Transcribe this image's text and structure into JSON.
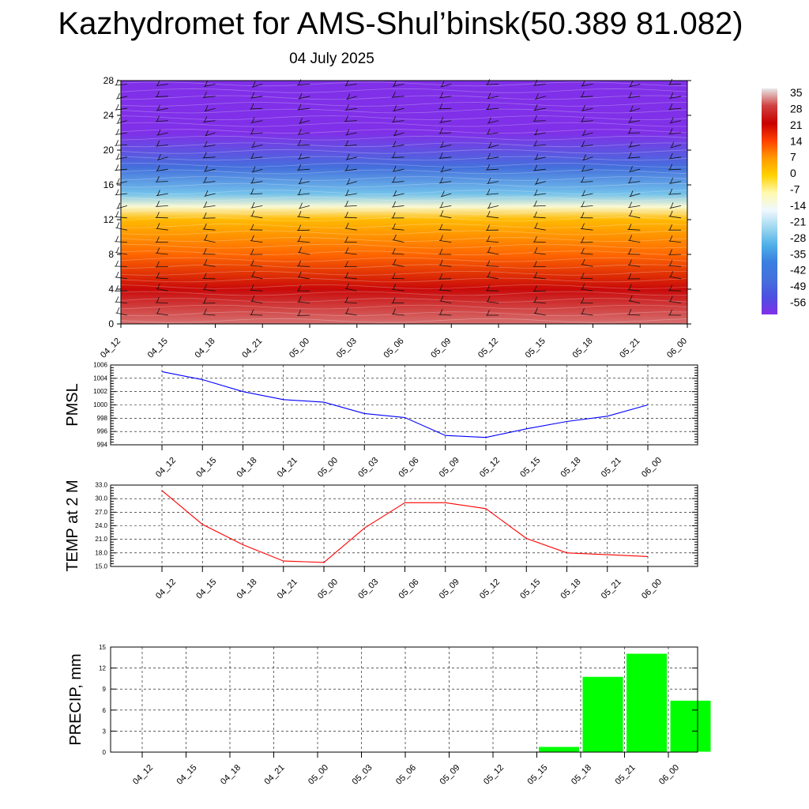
{
  "title": "Kazhydromet for AMS-Shul’binsk(50.389 81.082)",
  "date": "04 July 2025",
  "time_labels": [
    "04_12",
    "04_15",
    "04_18",
    "04_21",
    "05_00",
    "05_03",
    "05_06",
    "05_09",
    "05_12",
    "05_15",
    "05_18",
    "05_21",
    "06_00"
  ],
  "chart_data": [
    {
      "type": "heatmap",
      "title": "",
      "ylabel": "",
      "y_ticks": [
        0,
        4,
        8,
        12,
        16,
        20,
        24,
        28
      ],
      "ylim": [
        0,
        28
      ],
      "colorbar_labels": [
        "35",
        "28",
        "21",
        "14",
        "7",
        "0",
        "-7",
        "-14",
        "-21",
        "-28",
        "-35",
        "-42",
        "-49",
        "-56"
      ],
      "colorbar_colors": [
        "#e8e8e8",
        "#d04040",
        "#c80000",
        "#ff4000",
        "#ff9a00",
        "#ffd200",
        "#fff9b0",
        "#f0f8ff",
        "#a0d8f0",
        "#50b0e8",
        "#3a7fe0",
        "#4470dc",
        "#4c50e0",
        "#8030e8"
      ],
      "temperature_profile": [
        {
          "height": 0,
          "temp": 30
        },
        {
          "height": 4,
          "temp": 22
        },
        {
          "height": 8,
          "temp": 11
        },
        {
          "height": 12,
          "temp": 3
        },
        {
          "height": 13.5,
          "temp": -10
        },
        {
          "height": 15,
          "temp": -25
        },
        {
          "height": 18,
          "temp": -42
        },
        {
          "height": 22,
          "temp": -56
        },
        {
          "height": 28,
          "temp": -60
        }
      ]
    },
    {
      "type": "line",
      "ylabel": "PMSL",
      "x": [
        "04_12",
        "04_15",
        "04_18",
        "04_21",
        "05_00",
        "05_03",
        "05_06",
        "05_09",
        "05_12",
        "05_15",
        "05_18",
        "05_21",
        "06_00"
      ],
      "values": [
        1005.0,
        1003.8,
        1002.0,
        1000.8,
        1000.4,
        998.7,
        998.1,
        995.4,
        995.1,
        996.4,
        997.5,
        998.3,
        1000.0
      ],
      "ylim": [
        994,
        1006
      ],
      "y_ticks": [
        994,
        996,
        998,
        1000,
        1002,
        1004,
        1006
      ],
      "color": "#0000ff"
    },
    {
      "type": "line",
      "ylabel": "TEMP at 2 M",
      "x": [
        "04_12",
        "04_15",
        "04_18",
        "04_21",
        "05_00",
        "05_03",
        "05_06",
        "05_09",
        "05_12",
        "05_15",
        "05_18",
        "05_21",
        "06_00"
      ],
      "values": [
        31.8,
        24.3,
        19.8,
        16.2,
        15.9,
        23.5,
        29.1,
        29.1,
        27.8,
        21.2,
        18.0,
        17.6,
        17.2
      ],
      "ylim": [
        15,
        33
      ],
      "y_ticks": [
        15.0,
        18.0,
        21.0,
        24.0,
        27.0,
        30.0,
        33.0
      ],
      "color": "#ff0000"
    },
    {
      "type": "bar",
      "ylabel": "PRECIP, mm",
      "categories": [
        "04_12",
        "04_15",
        "04_18",
        "04_21",
        "05_00",
        "05_03",
        "05_06",
        "05_09",
        "05_12",
        "05_15",
        "05_18",
        "05_21",
        "06_00"
      ],
      "values": [
        0,
        0,
        0,
        0,
        0,
        0,
        0,
        0,
        0.1,
        0.8,
        10.8,
        14.1,
        7.4
      ],
      "ylim": [
        0,
        15
      ],
      "y_ticks": [
        0,
        3,
        6,
        9,
        12,
        15
      ],
      "color": "#00ff00"
    }
  ]
}
